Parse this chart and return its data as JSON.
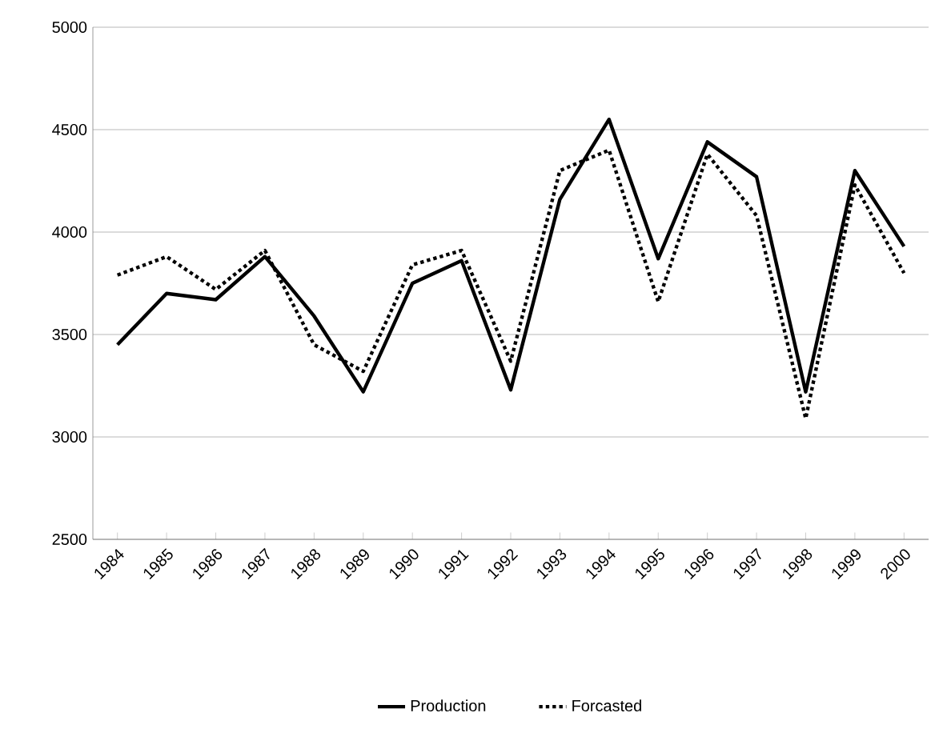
{
  "chart_data": {
    "type": "line",
    "categories": [
      "1984",
      "1985",
      "1986",
      "1987",
      "1988",
      "1989",
      "1990",
      "1991",
      "1992",
      "1993",
      "1994",
      "1995",
      "1996",
      "1997",
      "1998",
      "1999",
      "2000"
    ],
    "series": [
      {
        "name": "Production",
        "color": "#000000",
        "line_style": "solid",
        "values": [
          3450,
          3700,
          3670,
          3880,
          3590,
          3220,
          3750,
          3860,
          3230,
          4160,
          4550,
          3870,
          4440,
          4270,
          3220,
          4300,
          3930
        ]
      },
      {
        "name": "Forcasted",
        "color": "#000000",
        "line_style": "dotted",
        "values": [
          3790,
          3880,
          3720,
          3910,
          3450,
          3320,
          3840,
          3910,
          3370,
          4300,
          4400,
          3660,
          4380,
          4080,
          3090,
          4230,
          3800
        ]
      }
    ],
    "ylim": [
      2500,
      5000
    ],
    "yticks": [
      2500,
      3000,
      3500,
      4000,
      4500,
      5000
    ],
    "grid": "y",
    "legend": "bottom",
    "marker": "none"
  }
}
